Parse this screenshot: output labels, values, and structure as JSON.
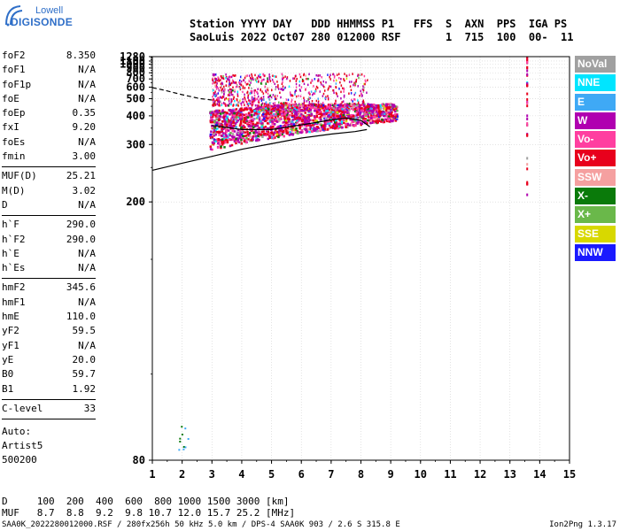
{
  "logo": {
    "top": "Lowell",
    "main": "DIGISONDE"
  },
  "header": {
    "line1": "Station YYYY DAY   DDD HHMMSS P1   FFS  S  AXN  PPS  IGA PS",
    "line2": "SaoLuis 2022 Oct07 280 012000 RSF       1  715  100  00-  11"
  },
  "params_group1": [
    {
      "label": "foF2",
      "value": "8.350"
    },
    {
      "label": "foF1",
      "value": "N/A"
    },
    {
      "label": "foF1p",
      "value": "N/A"
    },
    {
      "label": "foE",
      "value": "N/A"
    },
    {
      "label": "foEp",
      "value": "0.35"
    },
    {
      "label": "fxI",
      "value": "9.20"
    },
    {
      "label": "foEs",
      "value": "N/A"
    },
    {
      "label": "fmin",
      "value": "3.00"
    }
  ],
  "params_group2": [
    {
      "label": "MUF(D)",
      "value": "25.21"
    },
    {
      "label": "M(D)",
      "value": "3.02"
    },
    {
      "label": "D",
      "value": "N/A"
    }
  ],
  "params_group3": [
    {
      "label": "h`F",
      "value": "290.0"
    },
    {
      "label": "h`F2",
      "value": "290.0"
    },
    {
      "label": "h`E",
      "value": "N/A"
    },
    {
      "label": "h`Es",
      "value": "N/A"
    }
  ],
  "params_group4": [
    {
      "label": "hmF2",
      "value": "345.6"
    },
    {
      "label": "hmF1",
      "value": "N/A"
    },
    {
      "label": "hmE",
      "value": "110.0"
    },
    {
      "label": "yF2",
      "value": "59.5"
    },
    {
      "label": "yF1",
      "value": "N/A"
    },
    {
      "label": "yE",
      "value": "20.0"
    },
    {
      "label": "B0",
      "value": "59.7"
    },
    {
      "label": "B1",
      "value": "1.92"
    }
  ],
  "params_group5": [
    {
      "label": "C-level",
      "value": "33"
    }
  ],
  "auto": {
    "line1": "Auto:",
    "line2": "Artist5",
    "line3": "500200"
  },
  "legend": [
    {
      "label": "NoVal",
      "color": "#a0a0a0"
    },
    {
      "label": "NNE",
      "color": "#00e5ff"
    },
    {
      "label": "E",
      "color": "#3fa9f5"
    },
    {
      "label": "W",
      "color": "#b000b0"
    },
    {
      "label": "Vo-",
      "color": "#ff3fa0"
    },
    {
      "label": "Vo+",
      "color": "#e8001c"
    },
    {
      "label": "SSW",
      "color": "#f5a0a0"
    },
    {
      "label": "X-",
      "color": "#0a7a0a"
    },
    {
      "label": "X+",
      "color": "#6ab84a"
    },
    {
      "label": "SSE",
      "color": "#d8d800"
    },
    {
      "label": "NNW",
      "color": "#1a1aff"
    }
  ],
  "muf_table": {
    "d_row": "D     100  200  400  600  800 1000 1500 3000 [km]",
    "muf_row": "MUF   8.7  8.8  9.2  9.8 10.7 12.0 15.7 25.2 [MHz]"
  },
  "footer": {
    "left": "SAA0K_2022280012000.RSF / 280fx256h 50 kHz 5.0 km / DPS-4 SAA0K 903 / 2.6 S 315.8 E",
    "right": "Ion2Png 1.3.17"
  },
  "chart_data": {
    "type": "scatter",
    "title": "",
    "xlabel": "",
    "ylabel": "",
    "x_ticks": [
      1,
      2,
      3,
      4,
      5,
      6,
      7,
      8,
      9,
      10,
      11,
      12,
      13,
      14,
      15
    ],
    "y_ticks": [
      80,
      200,
      300,
      400,
      500,
      600,
      700,
      800,
      900,
      1000,
      1100,
      1280
    ],
    "xlim": [
      1,
      15
    ],
    "ylim": [
      80,
      1280
    ],
    "y_scale": "reciprocal",
    "grid": true,
    "dense_echo_region": {
      "x_range": [
        2.9,
        9.2
      ],
      "y_range": [
        280,
        800
      ]
    },
    "profile_curve": [
      [
        1.0,
        245
      ],
      [
        2.0,
        258
      ],
      [
        3.0,
        272
      ],
      [
        4.0,
        288
      ],
      [
        5.0,
        302
      ],
      [
        6.0,
        318
      ],
      [
        7.0,
        330
      ],
      [
        7.8,
        338
      ],
      [
        8.2,
        345
      ]
    ],
    "profile_dashed": [
      [
        1.0,
        595
      ],
      [
        1.4,
        570
      ],
      [
        2.0,
        530
      ],
      [
        2.6,
        500
      ],
      [
        3.0,
        490
      ]
    ],
    "profile_upper": [
      [
        3.0,
        360
      ],
      [
        4.0,
        345
      ],
      [
        5.0,
        345
      ],
      [
        6.0,
        362
      ],
      [
        7.0,
        382
      ],
      [
        7.5,
        390
      ],
      [
        8.0,
        380
      ],
      [
        8.3,
        355
      ]
    ]
  }
}
